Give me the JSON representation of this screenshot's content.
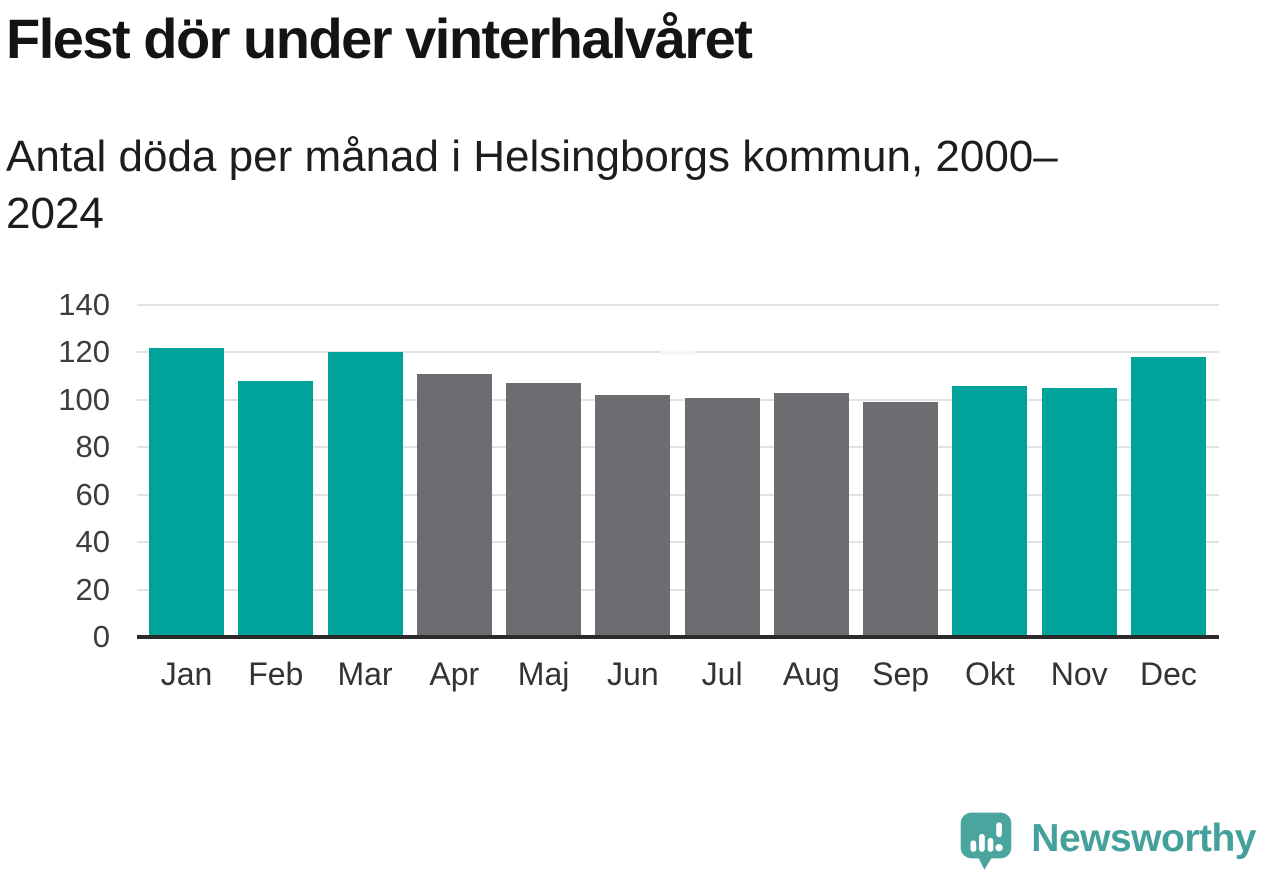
{
  "title": "Flest dör under vinterhalvåret",
  "subtitle": "Antal döda per månad i Helsingborgs kommun, 2000–2024",
  "chart_data": {
    "type": "bar",
    "title": "Flest dör under vinterhalvåret",
    "subtitle": "Antal döda per månad i Helsingborgs kommun, 2000–2024",
    "categories": [
      "Jan",
      "Feb",
      "Mar",
      "Apr",
      "Maj",
      "Jun",
      "Jul",
      "Aug",
      "Sep",
      "Okt",
      "Nov",
      "Dec"
    ],
    "values": [
      122,
      108,
      120,
      111,
      107,
      102,
      101,
      103,
      99,
      106,
      105,
      118
    ],
    "bar_colors": [
      "teal",
      "teal",
      "teal",
      "gray",
      "gray",
      "gray",
      "gray",
      "gray",
      "gray",
      "teal",
      "teal",
      "teal"
    ],
    "xlabel": "",
    "ylabel": "",
    "ylim": [
      0,
      140
    ],
    "yticks": [
      0,
      20,
      40,
      60,
      80,
      100,
      120,
      140
    ],
    "grid": true,
    "legend_position": "none"
  },
  "colors": {
    "teal": "#00a39a",
    "gray": "#6d6c71",
    "gridline": "#e2e2e2",
    "axis_line": "#2b2b2b",
    "brand_teal": "#43a09a",
    "brand_bubble": "#4ba59f"
  },
  "branding": {
    "wordmark": "Newsworthy",
    "icon": "speech-bubble-bar-chart-icon"
  }
}
